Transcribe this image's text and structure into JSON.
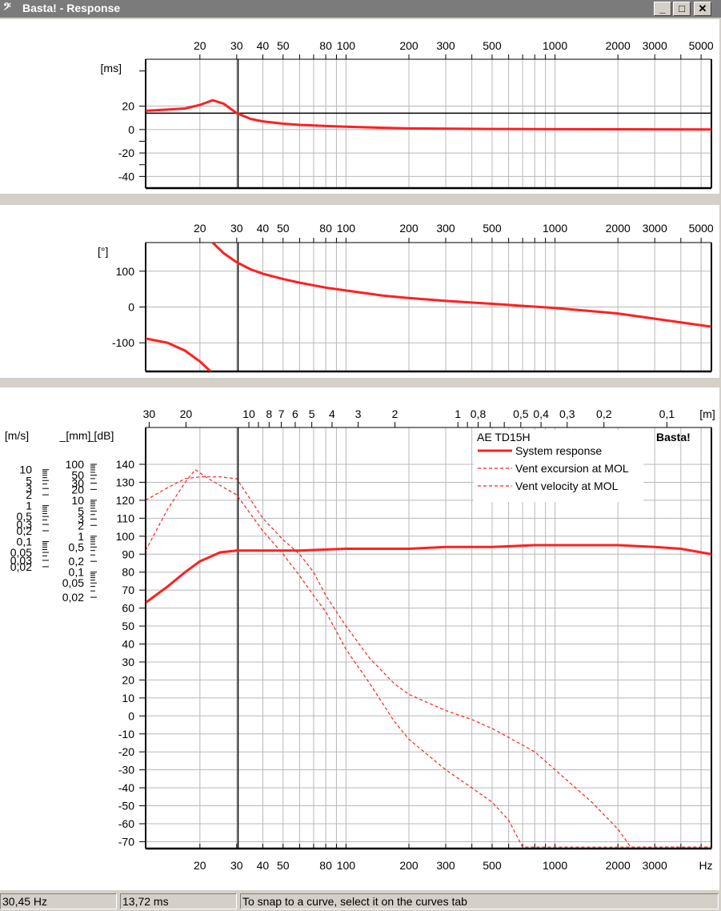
{
  "window": {
    "title": "Basta! - Response",
    "icon": "bass-clef-icon",
    "minimize": "_",
    "maximize": "□",
    "close": "✕"
  },
  "status": {
    "frequency": "30,45 Hz",
    "time": "13,72 ms",
    "hint": "To snap to a curve, select it on the curves tab"
  },
  "freq_ticks": [
    "20",
    "30",
    "40",
    "50",
    "80",
    "100",
    "200",
    "300",
    "500",
    "1000",
    "2000",
    "3000",
    "5000"
  ],
  "bottom_freq_ticks": [
    "20",
    "30",
    "40",
    "50",
    "80",
    "100",
    "200",
    "300",
    "500",
    "1000",
    "2000",
    "3000",
    "Hz"
  ],
  "wavelength_ticks": [
    "30",
    "20",
    "10",
    "8",
    "7",
    "6",
    "5",
    "4",
    "3",
    "2",
    "1",
    "0,8",
    "0,5",
    "0,4",
    "0,3",
    "0,2",
    "0,1",
    "[m]"
  ],
  "cursor_frequency": 30.45,
  "colors": {
    "curve": "#ff2020",
    "grid": "#b8b8b8",
    "cursor": "#000000",
    "watermark": "#c8c8c8"
  },
  "chart_data": [
    {
      "type": "line",
      "ylabel": "[ms]",
      "x_scale": "log",
      "xlim": [
        11,
        5600
      ],
      "ylim": [
        -50,
        60
      ],
      "y_ticks": [
        "20",
        "0",
        "-20",
        "-40"
      ],
      "cursor_y": 14,
      "series": [
        {
          "x": [
            11,
            14,
            17,
            20,
            23,
            26,
            30,
            35,
            40,
            50,
            60,
            80,
            100,
            150,
            200,
            500,
            1000,
            2000,
            5600
          ],
          "y": [
            16,
            17,
            18,
            21,
            25,
            22,
            14,
            9,
            7,
            5,
            4,
            3,
            2.5,
            1.5,
            1,
            0.5,
            0.3,
            0.2,
            0.1
          ]
        }
      ]
    },
    {
      "type": "line",
      "ylabel": "[°]",
      "x_scale": "log",
      "xlim": [
        11,
        5600
      ],
      "ylim": [
        -180,
        180
      ],
      "y_ticks": [
        "100",
        "0",
        "-100"
      ],
      "series": [
        {
          "x": [
            11,
            14,
            17,
            20,
            22.5
          ],
          "y": [
            -88,
            -100,
            -122,
            -152,
            -180
          ]
        },
        {
          "x": [
            23,
            26,
            30,
            35,
            40,
            50,
            60,
            80,
            100,
            150,
            200,
            300,
            500,
            1000,
            2000,
            5600
          ],
          "y": [
            180,
            150,
            125,
            105,
            93,
            78,
            68,
            54,
            46,
            32,
            25,
            17,
            9,
            -3,
            -18,
            -55
          ]
        }
      ]
    },
    {
      "type": "line",
      "ylabel": "[dB]",
      "ylabel_mm": "[mm]",
      "ylabel_ms": "[m/s]",
      "title": "AE TD15H",
      "watermark": "Basta!",
      "x_scale": "log",
      "xlim": [
        11,
        5600
      ],
      "ylim": [
        -75,
        150
      ],
      "db_ticks": [
        "140",
        "130",
        "120",
        "110",
        "100",
        "90",
        "80",
        "70",
        "60",
        "50",
        "40",
        "30",
        "20",
        "10",
        "0",
        "-10",
        "-20",
        "-30",
        "-40",
        "-50",
        "-60",
        "-70"
      ],
      "mm_ticks": [
        "100",
        "50",
        "30",
        "20",
        "10",
        "5",
        "3",
        "2",
        "1",
        "0,5",
        "0,2",
        "0,1",
        "0,05",
        "0,02"
      ],
      "ms_ticks": [
        "10",
        "5",
        "3",
        "2",
        "1",
        "0,5",
        "0,3",
        "0,2",
        "0,1",
        "0,05",
        "0,03",
        "0,02"
      ],
      "series": [
        {
          "name": "System response",
          "style": "solid",
          "x": [
            11,
            14,
            17,
            20,
            25,
            30,
            40,
            60,
            100,
            200,
            300,
            500,
            800,
            1000,
            2000,
            3000,
            4000,
            5600
          ],
          "y": [
            63,
            72,
            80,
            86,
            91,
            92,
            92,
            92,
            93,
            93,
            94,
            94,
            95,
            95,
            95,
            94,
            93,
            90
          ]
        },
        {
          "name": "Vent excursion at MOL",
          "style": "dashed",
          "x": [
            11,
            14,
            17,
            20,
            25,
            30,
            40,
            50,
            60,
            70,
            80,
            100,
            130,
            170,
            200,
            300,
            400,
            500,
            600,
            800,
            1000,
            1500,
            2000,
            2300,
            5600
          ],
          "y": [
            120,
            127,
            132,
            133,
            133,
            132,
            110,
            98,
            90,
            80,
            67,
            50,
            32,
            18,
            12,
            3,
            -2,
            -7,
            -12,
            -20,
            -30,
            -48,
            -63,
            -73,
            -73
          ]
        },
        {
          "name": "Vent velocity at MOL",
          "style": "dashed",
          "x": [
            11,
            14,
            17,
            19,
            22,
            30,
            40,
            50,
            60,
            70,
            80,
            100,
            130,
            170,
            200,
            300,
            400,
            500,
            600,
            700,
            5600
          ],
          "y": [
            92,
            115,
            130,
            137,
            132,
            123,
            103,
            90,
            78,
            67,
            58,
            37,
            18,
            -3,
            -13,
            -30,
            -40,
            -48,
            -58,
            -73,
            -73
          ]
        }
      ]
    }
  ]
}
